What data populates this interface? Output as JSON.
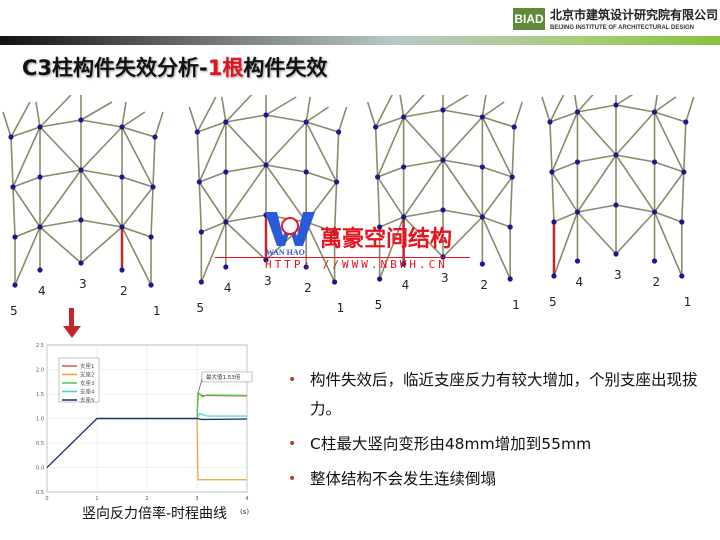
{
  "header": {
    "logo_text": "BIAD",
    "company_cn": "北京市建筑设计研究院有限公司",
    "company_en": "BEIJING INSTITUTE OF ARCHITECTURAL DESIGN",
    "brand_colors": {
      "logo_green": "#5e8a3a",
      "title_red": "#e0141e"
    }
  },
  "title": {
    "part1": "C3柱构件失效分析-",
    "highlight": "1根",
    "part2": "构件失效"
  },
  "diagrams": {
    "support_labels": [
      "1",
      "2",
      "3",
      "4",
      "5"
    ],
    "failed_support_per_panel": [
      "2",
      "3",
      "4",
      "5"
    ],
    "node_color": "#1a1a8c",
    "member_color": "#8a8a6a",
    "failed_member_color": "#c0282c"
  },
  "watermark": {
    "brand": "WAN HAO",
    "name": "萬豪空间结构",
    "url": "HTTP: //WWW.NBWH.CN"
  },
  "chart_data": {
    "type": "line",
    "xlabel": "",
    "x_unit": "(s)",
    "xlim": [
      0,
      4
    ],
    "ylim": [
      -0.5,
      2.5
    ],
    "xticks": [
      "0",
      "1",
      "2",
      "3",
      "4"
    ],
    "yticks": [
      "-0.5",
      "0.0",
      "0.5",
      "1.0",
      "1.5",
      "2.0",
      "2.5"
    ],
    "grid": true,
    "legend_position": "top-left",
    "annotation": "最大值1.53倍",
    "series": [
      {
        "name": "支座1",
        "color": "#d9534f",
        "x": [
          0,
          1,
          3,
          3.02,
          3.1,
          4
        ],
        "y": [
          0,
          1,
          1,
          1.52,
          1.47,
          1.46
        ]
      },
      {
        "name": "支座2",
        "color": "#f0a030",
        "x": [
          0,
          1,
          3,
          3.02,
          4
        ],
        "y": [
          0,
          1,
          1,
          -0.25,
          -0.25
        ]
      },
      {
        "name": "支座3",
        "color": "#4cc94c",
        "x": [
          0,
          1,
          3,
          3.03,
          3.1,
          3.2,
          4
        ],
        "y": [
          0,
          1,
          1,
          1.53,
          1.44,
          1.48,
          1.47
        ]
      },
      {
        "name": "支座4",
        "color": "#40d0d8",
        "x": [
          0,
          1,
          3,
          3.05,
          3.2,
          4
        ],
        "y": [
          0,
          1,
          1,
          1.1,
          1.05,
          1.05
        ]
      },
      {
        "name": "支座5",
        "color": "#1a2a80",
        "x": [
          0,
          1,
          3,
          3.1,
          4
        ],
        "y": [
          0,
          1,
          1,
          0.98,
          0.99
        ]
      }
    ]
  },
  "chart_caption": "竖向反力倍率-时程曲线",
  "bullets": [
    "构件失效后，临近支座反力有较大增加，个别支座出现拔力。",
    "C柱最大竖向变形由48mm增加到55mm",
    "整体结构不会发生连续倒塌"
  ],
  "bullet_marker": "•"
}
